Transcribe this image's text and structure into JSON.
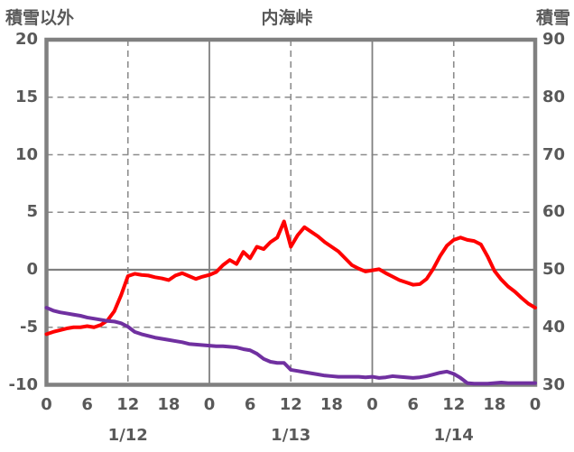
{
  "header": {
    "left_axis_title": "積雪以外",
    "chart_title": "内海峠",
    "right_axis_title": "積雪"
  },
  "chart_data": {
    "type": "line",
    "title": "内海峠",
    "x_unit": "hour",
    "x_range": [
      0,
      72
    ],
    "x_hours_step": 1,
    "x_tick_hours": [
      0,
      6,
      12,
      18,
      24,
      30,
      36,
      42,
      48,
      54,
      60,
      66,
      72
    ],
    "x_tick_labels": [
      "0",
      "6",
      "12",
      "18",
      "0",
      "6",
      "12",
      "18",
      "0",
      "6",
      "12",
      "18",
      "0"
    ],
    "date_labels": [
      {
        "label": "1/12",
        "hour": 12
      },
      {
        "label": "1/13",
        "hour": 36
      },
      {
        "label": "1/14",
        "hour": 60
      }
    ],
    "left_axis": {
      "title": "積雪以外",
      "min": -10,
      "max": 20,
      "ticks": [
        20,
        15,
        10,
        5,
        0,
        -5,
        -10
      ]
    },
    "right_axis": {
      "title": "積雪",
      "min": 30,
      "max": 90,
      "ticks": [
        90,
        80,
        70,
        60,
        50,
        40,
        30
      ]
    },
    "gridlines": {
      "horizontal_dashed_left_values": [
        15,
        10,
        5,
        -5
      ],
      "horizontal_solid_left_values": [
        0
      ],
      "vertical_dashed_hours": [
        12,
        36,
        60
      ],
      "vertical_solid_hours": [
        24,
        48
      ]
    },
    "style": {
      "frame_color": "#808080",
      "solid_grid_color": "#808080",
      "dashed_grid_color": "#8c8c8c",
      "text_color": "#595959",
      "background_color": "#ffffff"
    },
    "series": [
      {
        "id": "other-than-snow",
        "name": "積雪以外",
        "axis": "left",
        "color": "#ff0000",
        "values": [
          -5.6,
          -5.4,
          -5.25,
          -5.1,
          -5.0,
          -5.0,
          -4.9,
          -5.0,
          -4.8,
          -4.4,
          -3.6,
          -2.2,
          -0.55,
          -0.35,
          -0.45,
          -0.5,
          -0.65,
          -0.75,
          -0.9,
          -0.5,
          -0.3,
          -0.55,
          -0.8,
          -0.6,
          -0.45,
          -0.2,
          0.4,
          0.85,
          0.5,
          1.55,
          1.0,
          2.0,
          1.8,
          2.4,
          2.8,
          4.2,
          2.0,
          3.0,
          3.7,
          3.3,
          2.9,
          2.4,
          2.0,
          1.6,
          1.0,
          0.4,
          0.1,
          -0.15,
          -0.05,
          0.05,
          -0.3,
          -0.6,
          -0.9,
          -1.1,
          -1.3,
          -1.25,
          -0.8,
          0.1,
          1.2,
          2.1,
          2.6,
          2.8,
          2.6,
          2.5,
          2.2,
          1.15,
          -0.1,
          -0.85,
          -1.45,
          -1.9,
          -2.45,
          -2.95,
          -3.3
        ]
      },
      {
        "id": "snow-depth",
        "name": "積雪",
        "axis": "right",
        "color": "#7030a0",
        "values": [
          43.4,
          42.9,
          42.6,
          42.4,
          42.2,
          42.0,
          41.7,
          41.5,
          41.3,
          41.1,
          41.0,
          40.7,
          40.1,
          39.2,
          38.8,
          38.5,
          38.2,
          38.0,
          37.8,
          37.6,
          37.4,
          37.1,
          37.0,
          36.9,
          36.8,
          36.7,
          36.7,
          36.6,
          36.5,
          36.2,
          36.0,
          35.4,
          34.5,
          34.0,
          33.8,
          33.8,
          32.6,
          32.4,
          32.2,
          32.0,
          31.8,
          31.6,
          31.5,
          31.4,
          31.4,
          31.4,
          31.4,
          31.3,
          31.4,
          31.2,
          31.3,
          31.5,
          31.4,
          31.3,
          31.2,
          31.3,
          31.5,
          31.8,
          32.1,
          32.3,
          31.9,
          31.2,
          30.3,
          30.2,
          30.2,
          30.2,
          30.3,
          30.4,
          30.3,
          30.3,
          30.3,
          30.3,
          30.3
        ]
      }
    ]
  }
}
